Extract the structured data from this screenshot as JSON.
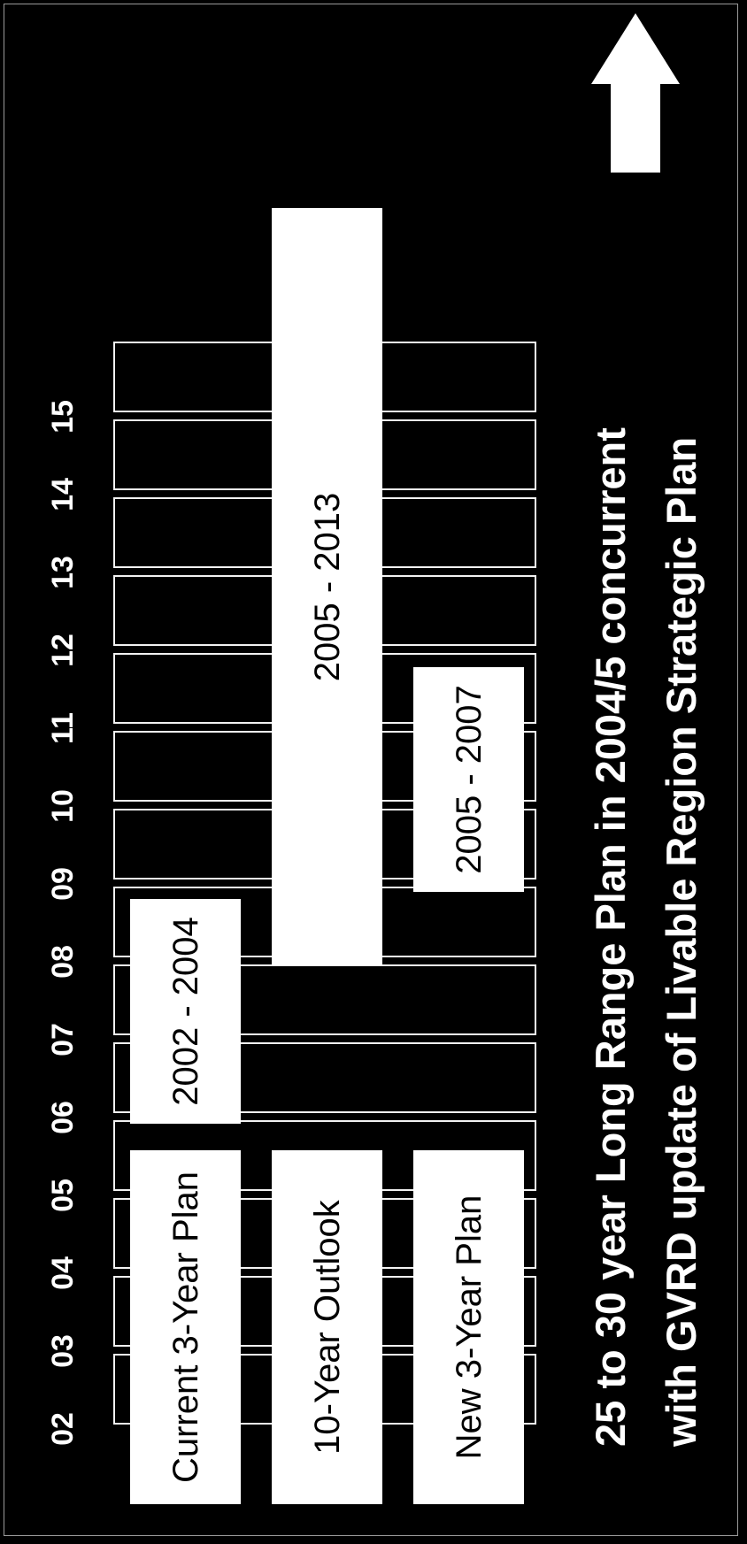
{
  "years": [
    "02",
    "03",
    "04",
    "05",
    "06",
    "07",
    "08",
    "09",
    "10",
    "11",
    "12",
    "13",
    "14",
    "15"
  ],
  "rows": [
    {
      "label": "Current 3-Year Plan",
      "bar": {
        "text": "2002 - 2004",
        "start": "2002",
        "end": "2004"
      }
    },
    {
      "label": "10-Year Outlook",
      "bar": {
        "text": "2005 - 2013",
        "start": "2005",
        "end": "2013"
      }
    },
    {
      "label": "New 3-Year Plan",
      "bar": {
        "text": "2005 - 2007",
        "start": "2005",
        "end": "2007"
      }
    }
  ],
  "note": {
    "bullet": "•",
    "line1": "25 to 30 year Long Range Plan in 2004/5 concurrent",
    "line2": "with GVRD update of Livable Region Strategic Plan"
  },
  "arrow_icon": "up-arrow-icon",
  "colors": {
    "background": "#000000",
    "foreground": "#ffffff"
  }
}
